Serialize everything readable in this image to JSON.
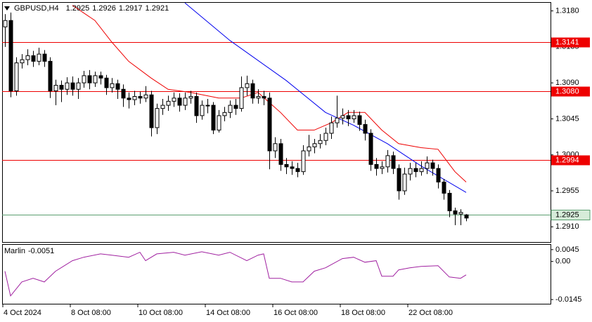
{
  "chart_data": [
    {
      "type": "candlestick",
      "symbol": "GBPUSD,H4",
      "open": [
        1.316,
        1.3168,
        1.308,
        1.3115,
        1.3119,
        1.3124,
        1.3117,
        1.3126,
        1.3117,
        1.308,
        1.3087,
        1.3082,
        1.309,
        1.3082,
        1.309,
        1.3099,
        1.309,
        1.3099,
        1.3096,
        1.3084,
        1.3089,
        1.3082,
        1.3071,
        1.3069,
        1.3073,
        1.3071,
        1.3075,
        1.3034,
        1.3058,
        1.3062,
        1.3067,
        1.3071,
        1.3062,
        1.3071,
        1.3073,
        1.3049,
        1.3062,
        1.3062,
        1.3031,
        1.3049,
        1.3053,
        1.3062,
        1.3058,
        1.3084,
        1.3089,
        1.3071,
        1.3073,
        1.3071,
        1.3005,
        1.3014,
        1.2988,
        1.2985,
        1.2983,
        1.2979,
        1.3005,
        1.301,
        1.3014,
        1.3018,
        1.3027,
        1.304,
        1.3046,
        1.3049,
        1.3045,
        1.3049,
        1.3038,
        1.3027,
        1.2988,
        1.2983,
        1.2985,
        1.2999,
        1.2983,
        1.2955,
        1.2976,
        1.2983,
        1.2979,
        1.2983,
        1.299,
        1.2983,
        1.2966,
        1.2952,
        1.293,
        1.2926,
        1.2925
      ],
      "high": [
        1.3176,
        1.3178,
        1.3122,
        1.3126,
        1.3132,
        1.313,
        1.3134,
        1.3131,
        1.3122,
        1.3094,
        1.3093,
        1.3097,
        1.3098,
        1.3096,
        1.3105,
        1.3106,
        1.3104,
        1.3104,
        1.31,
        1.3096,
        1.3094,
        1.3088,
        1.3078,
        1.308,
        1.3079,
        1.3086,
        1.308,
        1.3064,
        1.307,
        1.3074,
        1.3078,
        1.3077,
        1.3078,
        1.308,
        1.3078,
        1.3068,
        1.307,
        1.3066,
        1.3056,
        1.306,
        1.3068,
        1.307,
        1.3098,
        1.3099,
        1.3094,
        1.3082,
        1.308,
        1.3078,
        1.3022,
        1.302,
        1.2996,
        1.2992,
        1.299,
        1.3012,
        1.3025,
        1.302,
        1.3026,
        1.3034,
        1.3048,
        1.3074,
        1.3058,
        1.3056,
        1.3056,
        1.3054,
        1.3044,
        1.3032,
        1.2996,
        1.2992,
        1.3006,
        1.3004,
        1.2988,
        1.2984,
        1.299,
        1.299,
        1.2992,
        1.2998,
        1.2994,
        1.2988,
        1.297,
        1.2956,
        1.2934,
        1.2932,
        1.2926
      ],
      "low": [
        1.3135,
        1.3072,
        1.3074,
        1.3108,
        1.3112,
        1.311,
        1.3112,
        1.311,
        1.3071,
        1.3062,
        1.3066,
        1.3075,
        1.3074,
        1.307,
        1.3084,
        1.3082,
        1.3085,
        1.3088,
        1.3075,
        1.3078,
        1.307,
        1.306,
        1.3058,
        1.3062,
        1.3064,
        1.3066,
        1.3023,
        1.3026,
        1.305,
        1.3055,
        1.306,
        1.3054,
        1.3056,
        1.3064,
        1.304,
        1.3044,
        1.3052,
        1.3026,
        1.3028,
        1.3042,
        1.3046,
        1.305,
        1.3054,
        1.3074,
        1.3064,
        1.3064,
        1.3062,
        1.2982,
        1.2996,
        1.298,
        1.2976,
        1.2975,
        1.2972,
        1.2975,
        1.2998,
        1.3002,
        1.3008,
        1.3012,
        1.302,
        1.3034,
        1.3038,
        1.3036,
        1.304,
        1.303,
        1.3018,
        1.298,
        1.2974,
        1.2976,
        1.2978,
        1.2976,
        1.2944,
        1.295,
        1.2968,
        1.2972,
        1.2974,
        1.2976,
        1.2974,
        1.2958,
        1.2944,
        1.2922,
        1.2912,
        1.2912,
        1.2917
      ],
      "close": [
        1.3168,
        1.308,
        1.3115,
        1.3119,
        1.3124,
        1.3117,
        1.3126,
        1.3117,
        1.308,
        1.3087,
        1.3082,
        1.309,
        1.3082,
        1.309,
        1.3099,
        1.309,
        1.3099,
        1.3096,
        1.3084,
        1.3089,
        1.3082,
        1.3071,
        1.3069,
        1.3073,
        1.3071,
        1.3075,
        1.3034,
        1.3058,
        1.3062,
        1.3067,
        1.3071,
        1.3062,
        1.3071,
        1.3073,
        1.3049,
        1.3062,
        1.3062,
        1.3031,
        1.3049,
        1.3053,
        1.3062,
        1.3058,
        1.3084,
        1.3089,
        1.3071,
        1.3073,
        1.3071,
        1.3005,
        1.3014,
        1.2988,
        1.2985,
        1.2983,
        1.2979,
        1.3005,
        1.301,
        1.3014,
        1.3018,
        1.3027,
        1.304,
        1.3046,
        1.3049,
        1.3045,
        1.3049,
        1.3038,
        1.3027,
        1.2988,
        1.2983,
        1.2985,
        1.2999,
        1.2983,
        1.2955,
        1.2976,
        1.2983,
        1.2979,
        1.2983,
        1.299,
        1.2983,
        1.2966,
        1.2952,
        1.293,
        1.2926,
        1.2928,
        1.2921
      ],
      "up_color": "#ffffff",
      "down_color": "#000000",
      "ylim": [
        1.2891,
        1.3191
      ],
      "yticks": [
        {
          "value": 1.318,
          "label": "1.3180"
        },
        {
          "value": 1.3135,
          "label": "1.3135"
        },
        {
          "value": 1.309,
          "label": "1.3090"
        },
        {
          "value": 1.3045,
          "label": "1.3045"
        },
        {
          "value": 1.3,
          "label": "1.3000"
        },
        {
          "value": 1.2955,
          "label": "1.2955"
        },
        {
          "value": 1.291,
          "label": "1.2910"
        }
      ],
      "xticks": [
        {
          "value": 0,
          "label": "4 Oct 2024"
        },
        {
          "value": 12,
          "label": "8 Oct 08:00"
        },
        {
          "value": 24,
          "label": "10 Oct 08:00"
        },
        {
          "value": 36,
          "label": "14 Oct 08:00"
        },
        {
          "value": 48,
          "label": "16 Oct 08:00"
        },
        {
          "value": 60,
          "label": "18 Oct 08:00"
        },
        {
          "value": 72,
          "label": "22 Oct 08:00"
        }
      ],
      "levels": [
        1.3141,
        {
          "value": 1.308,
          "label": "1.3080"
        },
        1.2994
      ],
      "level_color": "#ee0000",
      "price_line": 1.2925,
      "price_line_color": "#5a9e6f",
      "overlays": [
        {
          "color": "#ee0000",
          "x": [
            12,
            16,
            19,
            22,
            26,
            29,
            33,
            38,
            42,
            45,
            49,
            52,
            55,
            58,
            61,
            64,
            67,
            70,
            74,
            77,
            80,
            82
          ],
          "values": [
            1.3187,
            1.3168,
            1.3141,
            1.3117,
            1.3096,
            1.3082,
            1.3078,
            1.3071,
            1.3071,
            1.3078,
            1.3053,
            1.3031,
            1.3031,
            1.304,
            1.3053,
            1.3053,
            1.3031,
            1.3014,
            1.3009,
            1.3007,
            1.2979,
            1.2966
          ]
        },
        {
          "color": "#0000ee",
          "x": [
            32,
            40,
            50,
            57,
            62,
            68,
            74,
            82
          ],
          "values": [
            1.319,
            1.3143,
            1.3093,
            1.3053,
            1.3037,
            1.3014,
            1.2986,
            1.2953
          ]
        }
      ]
    },
    {
      "type": "line",
      "title": "Marlin",
      "color": "#a020a0",
      "x": [
        0,
        1,
        3,
        5,
        7,
        9,
        12,
        14,
        17,
        19,
        22,
        24,
        25,
        27,
        30,
        32,
        35,
        38,
        40,
        43,
        45,
        46,
        47,
        49,
        51,
        53,
        55,
        57,
        60,
        62,
        64,
        66,
        67,
        69,
        70,
        72,
        74,
        77,
        79,
        81,
        82
      ],
      "values": [
        -0.0037,
        -0.0131,
        -0.0078,
        -0.0064,
        -0.0078,
        -0.0037,
        0.0003,
        0.0016,
        0.0029,
        0.0024,
        0.0016,
        0.0035,
        0.0003,
        0.0029,
        0.0035,
        0.0024,
        0.0037,
        0.0024,
        0.0035,
        0.0003,
        0.0024,
        0.0029,
        -0.0064,
        -0.0064,
        -0.0078,
        -0.0078,
        -0.0037,
        -0.0024,
        0.0011,
        0.0016,
        -0.0003,
        0.0003,
        -0.0056,
        -0.0056,
        -0.0032,
        -0.0024,
        -0.0019,
        -0.0016,
        -0.0059,
        -0.0064,
        -0.0051
      ],
      "ylim": [
        -0.0161,
        0.0066
      ],
      "yticks": [
        0.0045,
        {
          "value": 0,
          "label": "0.00"
        },
        -0.0145
      ]
    }
  ]
}
